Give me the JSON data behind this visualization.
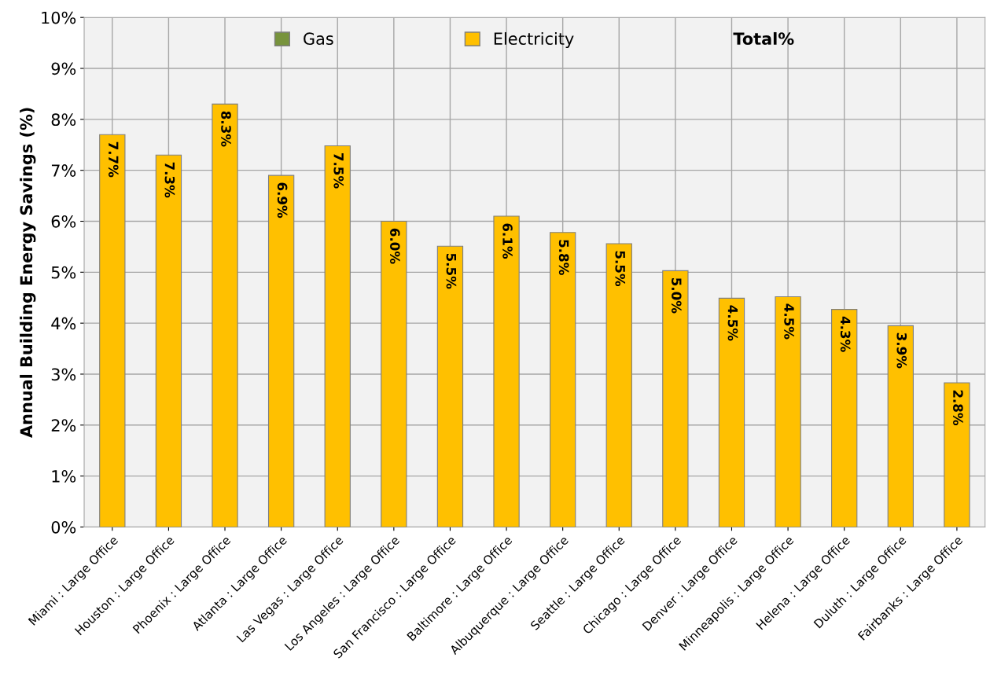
{
  "chart_data": {
    "type": "bar",
    "stacked": true,
    "ylabel": "Annual Building Energy Savings (%)",
    "legend_title": "Total%",
    "categories": [
      "Miami : Large Office",
      "Houston : Large Office",
      "Phoenix : Large Office",
      "Atlanta : Large Office",
      "Las Vegas : Large Office",
      "Los Angeles : Large Office",
      "San Francisco : Large Office",
      "Baltimore : Large Office",
      "Albuquerque : Large Office",
      "Seattle : Large Office",
      "Chicago : Large Office",
      "Denver : Large Office",
      "Minneapolis : Large Office",
      "Helena : Large Office",
      "Duluth : Large Office",
      "Fairbanks : Large Office"
    ],
    "series": [
      {
        "name": "Gas",
        "color": "#77933c",
        "values": [
          0,
          0,
          0,
          0,
          0,
          0,
          0,
          0,
          0,
          0,
          0,
          0,
          0,
          0,
          0,
          0
        ]
      },
      {
        "name": "Electricity",
        "color": "#ffc000",
        "values": [
          7.7,
          7.3,
          8.3,
          6.9,
          7.48,
          6.0,
          5.51,
          6.1,
          5.78,
          5.56,
          5.03,
          4.49,
          4.52,
          4.27,
          3.95,
          2.83
        ]
      }
    ],
    "totals": [
      "7.7%",
      "7.3%",
      "8.3%",
      "6.9%",
      "7.5%",
      "6.0%",
      "5.5%",
      "6.1%",
      "5.8%",
      "5.5%",
      "5.0%",
      "4.5%",
      "4.5%",
      "4.3%",
      "3.9%",
      "2.8%"
    ],
    "ylim": [
      0,
      10
    ],
    "yticks": [
      {
        "value": 0,
        "label": "0%"
      },
      {
        "value": 1,
        "label": "1%"
      },
      {
        "value": 2,
        "label": "2%"
      },
      {
        "value": 3,
        "label": "3%"
      },
      {
        "value": 4,
        "label": "4%"
      },
      {
        "value": 5,
        "label": "5%"
      },
      {
        "value": 6,
        "label": "6%"
      },
      {
        "value": 7,
        "label": "7%"
      },
      {
        "value": 8,
        "label": "8%"
      },
      {
        "value": 9,
        "label": "9%"
      },
      {
        "value": 10,
        "label": "10%"
      }
    ],
    "grid": true,
    "legend": "top"
  }
}
